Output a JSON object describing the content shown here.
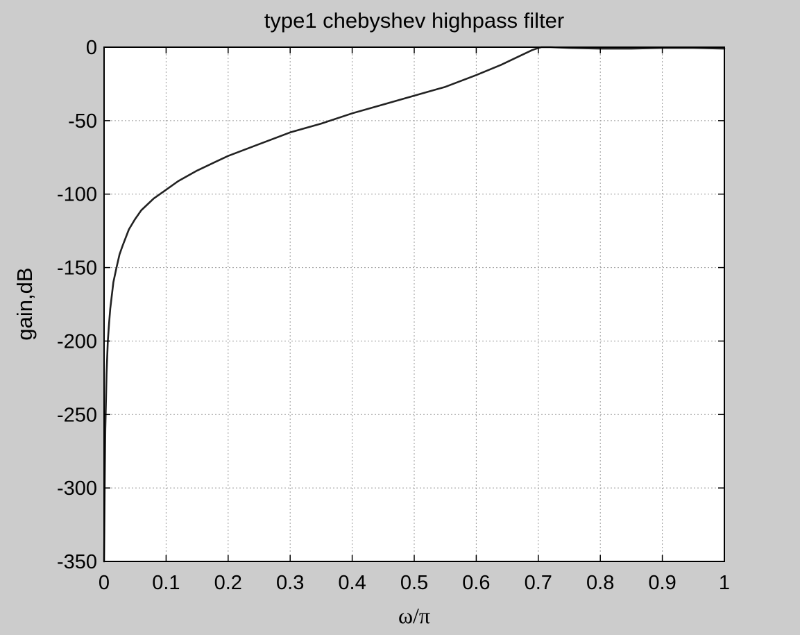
{
  "chart_data": {
    "type": "line",
    "title": "type1 chebyshev highpass filter",
    "xlabel": "ω/π",
    "ylabel": "gain,dB",
    "xlim": [
      0,
      1
    ],
    "ylim": [
      -350,
      0
    ],
    "xticks": [
      0,
      0.1,
      0.2,
      0.3,
      0.4,
      0.5,
      0.6,
      0.7,
      0.8,
      0.9,
      1
    ],
    "xtick_labels": [
      "0",
      "0.1",
      "0.2",
      "0.3",
      "0.4",
      "0.5",
      "0.6",
      "0.7",
      "0.8",
      "0.9",
      "1"
    ],
    "yticks": [
      0,
      -50,
      -100,
      -150,
      -200,
      -250,
      -300,
      -350
    ],
    "ytick_labels": [
      "0",
      "-50",
      "-100",
      "-150",
      "-200",
      "-250",
      "-300",
      "-350"
    ],
    "grid": true,
    "legend": "none",
    "colors": {
      "background": "#cccccc",
      "plot_area": "#ffffff",
      "line": "#222222",
      "grid": "#9a9a9a"
    },
    "series": [
      {
        "x": [
          0,
          0.001,
          0.002,
          0.004,
          0.006,
          0.008,
          0.01,
          0.015,
          0.02,
          0.025,
          0.03,
          0.04,
          0.05,
          0.06,
          0.07,
          0.08,
          0.1,
          0.12,
          0.15,
          0.18,
          0.2,
          0.25,
          0.3,
          0.35,
          0.4,
          0.45,
          0.5,
          0.55,
          0.6,
          0.64,
          0.67,
          0.69,
          0.7,
          0.705,
          0.72,
          0.75,
          0.8,
          0.85,
          0.9,
          0.95,
          1.0
        ],
        "y": [
          -350,
          -300,
          -260,
          -222,
          -200,
          -188,
          -178,
          -160,
          -150,
          -141,
          -135,
          -124,
          -117,
          -111,
          -107,
          -103,
          -97,
          -91,
          -84,
          -78,
          -74,
          -66,
          -58,
          -52,
          -45,
          -39,
          -33,
          -27,
          -19,
          -12,
          -6,
          -2,
          -0.5,
          0,
          0,
          -0.5,
          -1,
          -1,
          -0.5,
          -0.5,
          -1
        ]
      }
    ]
  }
}
